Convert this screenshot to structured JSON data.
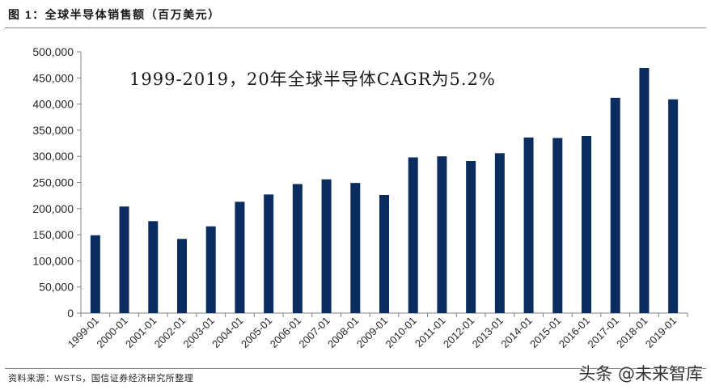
{
  "figure": {
    "source": "资料来源：WSTS，国信证券经济研究所整理",
    "watermark": "头条 @未来智库"
  },
  "colors": {
    "bar": "#0b2c5e",
    "axis": "#808080",
    "text": "#262626",
    "annotation": "#1a1a1a"
  },
  "chart_data": {
    "type": "bar",
    "title": "图 1：全球半导体销售额（百万美元）",
    "annotation": "1999-2019，20年全球半导体CAGR为5.2%",
    "categories": [
      "1999-01",
      "2000-01",
      "2001-01",
      "2002-01",
      "2003-01",
      "2004-01",
      "2005-01",
      "2006-01",
      "2007-01",
      "2008-01",
      "2009-01",
      "2010-01",
      "2011-01",
      "2012-01",
      "2013-01",
      "2014-01",
      "2015-01",
      "2016-01",
      "2017-01",
      "2018-01",
      "2019-01"
    ],
    "values": [
      149000,
      204000,
      176000,
      142000,
      166000,
      213000,
      227000,
      247000,
      256000,
      249000,
      226000,
      298000,
      300000,
      291000,
      306000,
      336000,
      335000,
      339000,
      412000,
      469000,
      409000
    ],
    "ylim": [
      0,
      500000
    ],
    "yticks": [
      0,
      50000,
      100000,
      150000,
      200000,
      250000,
      300000,
      350000,
      400000,
      450000,
      500000
    ],
    "ytick_labels": [
      "0",
      "50,000",
      "100,000",
      "150,000",
      "200,000",
      "250,000",
      "300,000",
      "350,000",
      "400,000",
      "450,000",
      "500,000"
    ],
    "grid": false
  }
}
